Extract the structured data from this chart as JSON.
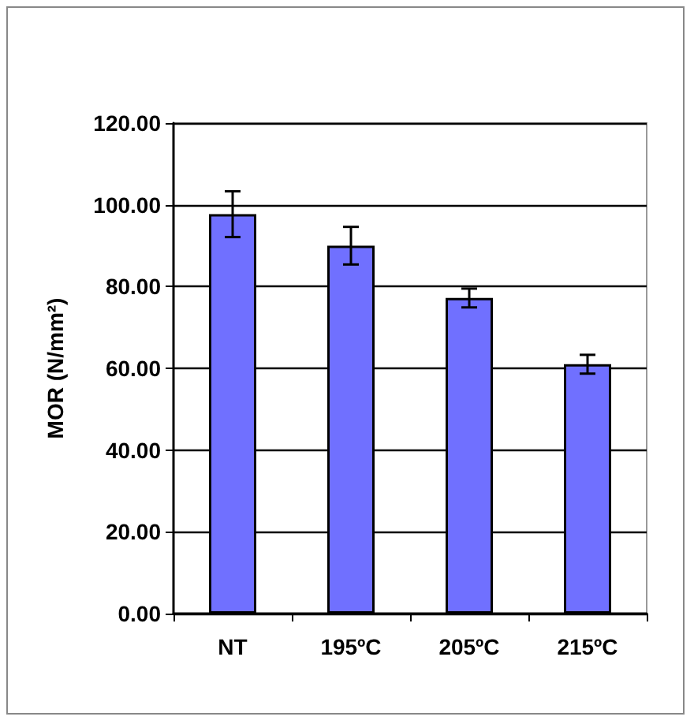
{
  "chart_data": {
    "type": "bar",
    "ylabel": "MOR (N/mm²)",
    "categories": [
      "NT",
      "195ºC",
      "205ºC",
      "215ºC"
    ],
    "values": [
      97.7,
      90.0,
      77.2,
      61.0
    ],
    "errors": [
      5.6,
      4.6,
      2.3,
      2.3
    ],
    "color": "#7070ff",
    "ylim": [
      0,
      120
    ],
    "yticks": [
      {
        "value": 0,
        "label": "0.00"
      },
      {
        "value": 20,
        "label": "20.00"
      },
      {
        "value": 40,
        "label": "40.00"
      },
      {
        "value": 60,
        "label": "60.00"
      },
      {
        "value": 80,
        "label": "80.00"
      },
      {
        "value": 100,
        "label": "100.00"
      },
      {
        "value": 120,
        "label": "120.00"
      }
    ],
    "grid": "y"
  }
}
